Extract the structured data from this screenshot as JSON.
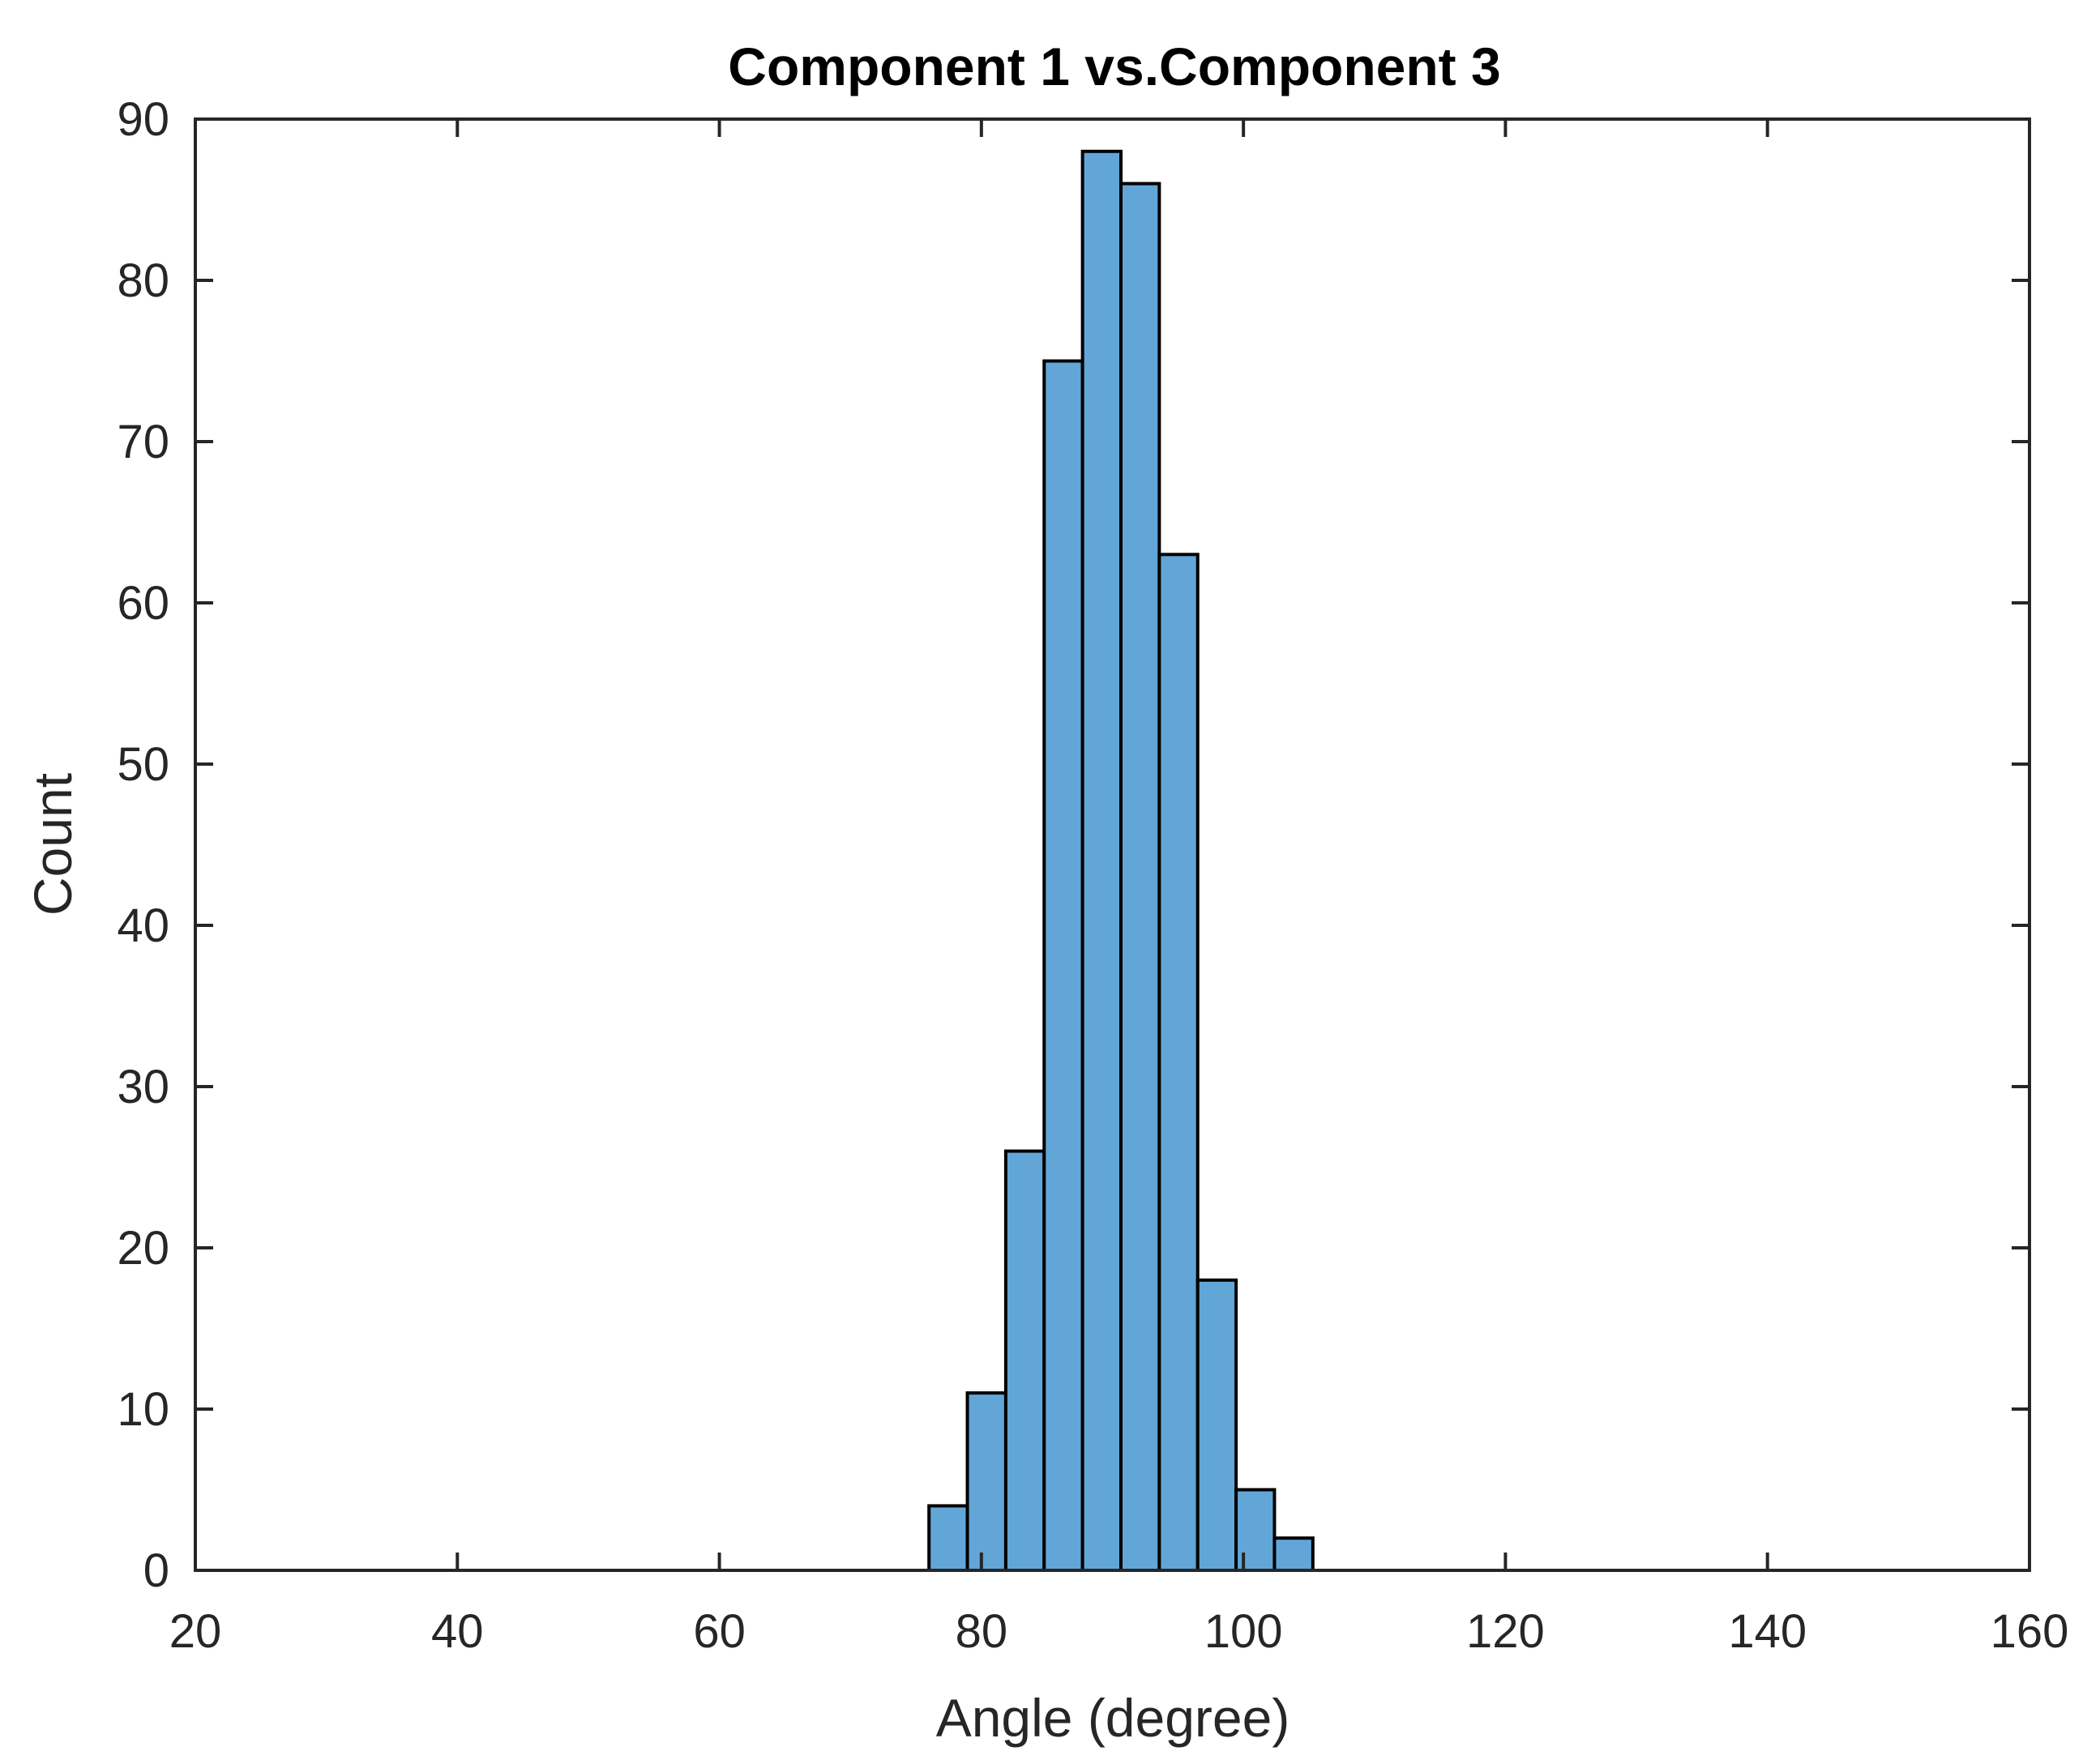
{
  "chart_data": {
    "type": "bar",
    "title": "Component 1 vs.Component 3",
    "xlabel": "Angle (degree)",
    "ylabel": "Count",
    "xlim": [
      20,
      160
    ],
    "ylim": [
      0,
      90
    ],
    "xticks": [
      20,
      40,
      60,
      80,
      100,
      120,
      140,
      160
    ],
    "yticks": [
      0,
      10,
      20,
      30,
      40,
      50,
      60,
      70,
      80,
      90
    ],
    "grid": false,
    "bin_width": 2.93,
    "bins": [
      {
        "x0": 76.0,
        "x1": 78.93,
        "count": 4
      },
      {
        "x0": 78.93,
        "x1": 81.86,
        "count": 11
      },
      {
        "x0": 81.86,
        "x1": 84.79,
        "count": 26
      },
      {
        "x0": 84.79,
        "x1": 87.72,
        "count": 75
      },
      {
        "x0": 87.72,
        "x1": 90.65,
        "count": 88
      },
      {
        "x0": 90.65,
        "x1": 93.58,
        "count": 86
      },
      {
        "x0": 93.58,
        "x1": 96.51,
        "count": 63
      },
      {
        "x0": 96.51,
        "x1": 99.44,
        "count": 18
      },
      {
        "x0": 99.44,
        "x1": 102.37,
        "count": 5
      },
      {
        "x0": 102.37,
        "x1": 105.3,
        "count": 2
      }
    ],
    "bar_color": "#62a6d8",
    "edge_color": "#000000"
  }
}
